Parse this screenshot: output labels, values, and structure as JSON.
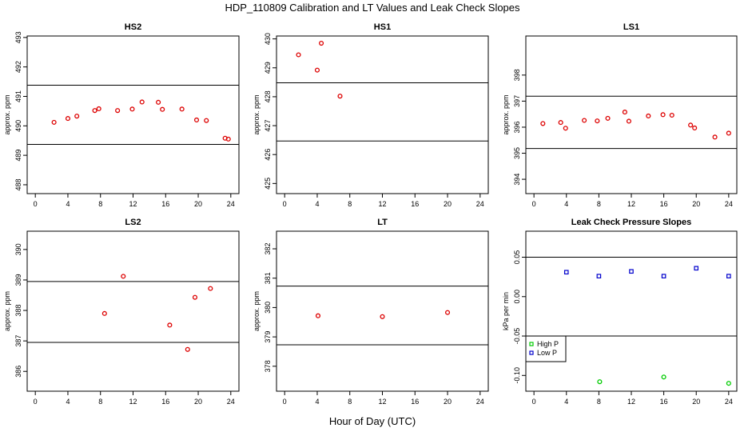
{
  "figure": {
    "title": "HDP_110809  Calibration and LT Values and Leak Check Slopes",
    "xlabel": "Hour of Day (UTC)"
  },
  "chart_data": [
    {
      "type": "scatter",
      "title": "HS2",
      "ylabel": "approx. ppm",
      "xlim": [
        -1,
        25
      ],
      "ylim": [
        487.7,
        493.05
      ],
      "xticks": [
        0,
        4,
        8,
        12,
        16,
        20,
        24
      ],
      "yticks": [
        488,
        489,
        490,
        491,
        492,
        493
      ],
      "hlines": [
        489.37,
        491.38
      ],
      "grid": false,
      "series": [
        {
          "color": "#dd0000",
          "marker": "circle",
          "x": [
            2.3,
            4.0,
            5.1,
            7.3,
            7.8,
            10.1,
            11.9,
            13.1,
            15.1,
            15.6,
            18.0,
            19.8,
            21.0,
            23.3,
            23.7
          ],
          "y": [
            490.12,
            490.25,
            490.33,
            490.52,
            490.58,
            490.52,
            490.57,
            490.81,
            490.8,
            490.56,
            490.57,
            490.2,
            490.18,
            489.58,
            489.55
          ]
        }
      ]
    },
    {
      "type": "scatter",
      "title": "HS1",
      "ylabel": "approx. ppm",
      "xlim": [
        -1,
        25
      ],
      "ylim": [
        424.65,
        430.1
      ],
      "xticks": [
        0,
        4,
        8,
        12,
        16,
        20,
        24
      ],
      "yticks": [
        425,
        426,
        427,
        428,
        429,
        430
      ],
      "hlines": [
        426.47,
        428.48
      ],
      "grid": false,
      "series": [
        {
          "color": "#dd0000",
          "marker": "circle",
          "x": [
            1.7,
            4.0,
            4.5,
            6.8
          ],
          "y": [
            429.45,
            428.92,
            429.85,
            428.02
          ]
        }
      ]
    },
    {
      "type": "scatter",
      "title": "LS1",
      "ylabel": "approx. ppm",
      "xlim": [
        -1,
        25
      ],
      "ylim": [
        393.45,
        399.5
      ],
      "xticks": [
        0,
        4,
        8,
        12,
        16,
        20,
        24
      ],
      "yticks": [
        394,
        395,
        396,
        397,
        398
      ],
      "hlines": [
        395.18,
        397.19
      ],
      "grid": false,
      "series": [
        {
          "color": "#dd0000",
          "marker": "circle",
          "x": [
            1.1,
            3.3,
            3.9,
            6.2,
            7.8,
            9.1,
            11.2,
            11.7,
            14.1,
            15.9,
            17.0,
            19.3,
            19.8,
            22.3,
            24.0
          ],
          "y": [
            396.14,
            396.18,
            395.96,
            396.26,
            396.24,
            396.34,
            396.58,
            396.23,
            396.43,
            396.48,
            396.46,
            396.08,
            395.97,
            395.62,
            395.77
          ]
        }
      ]
    },
    {
      "type": "scatter",
      "title": "LS2",
      "ylabel": "approx. ppm",
      "xlim": [
        -1,
        25
      ],
      "ylim": [
        385.35,
        390.6
      ],
      "xticks": [
        0,
        4,
        8,
        12,
        16,
        20,
        24
      ],
      "yticks": [
        386,
        387,
        388,
        389,
        390
      ],
      "hlines": [
        386.95,
        388.95
      ],
      "grid": false,
      "series": [
        {
          "color": "#dd0000",
          "marker": "circle",
          "x": [
            8.5,
            10.8,
            16.5,
            18.7,
            19.6,
            21.5
          ],
          "y": [
            387.9,
            389.12,
            387.52,
            386.72,
            388.43,
            388.72
          ]
        }
      ]
    },
    {
      "type": "scatter",
      "title": "LT",
      "ylabel": "approx. ppm",
      "xlim": [
        -1,
        25
      ],
      "ylim": [
        377.15,
        382.6
      ],
      "xticks": [
        0,
        4,
        8,
        12,
        16,
        20,
        24
      ],
      "yticks": [
        378,
        379,
        380,
        381,
        382
      ],
      "hlines": [
        378.73,
        380.73
      ],
      "grid": false,
      "series": [
        {
          "color": "#dd0000",
          "marker": "circle",
          "x": [
            4.1,
            12.0,
            20.0
          ],
          "y": [
            379.72,
            379.69,
            379.83
          ]
        }
      ]
    },
    {
      "type": "scatter",
      "title": "Leak Check Pressure Slopes",
      "ylabel": "kPa per min",
      "xlim": [
        -1,
        25
      ],
      "ylim": [
        -0.12,
        0.083
      ],
      "xticks": [
        0,
        4,
        8,
        12,
        16,
        20,
        24
      ],
      "yticks": [
        -0.1,
        -0.05,
        0.0,
        0.05
      ],
      "ytick_labels": [
        "-0.10",
        "-0.05",
        "0.00",
        "0.05"
      ],
      "hlines": [
        0.05,
        -0.05
      ],
      "grid": false,
      "legend_position": "lower-left",
      "series": [
        {
          "name": "High P",
          "color": "#00cc00",
          "marker": "circle",
          "x": [
            8.1,
            16.0,
            24.0
          ],
          "y": [
            -0.108,
            -0.102,
            -0.11
          ]
        },
        {
          "name": "Low P",
          "color": "#0000cc",
          "marker": "square",
          "x": [
            4.0,
            8.0,
            12.0,
            16.0,
            20.0,
            24.0
          ],
          "y": [
            0.031,
            0.026,
            0.032,
            0.026,
            0.036,
            0.026
          ]
        }
      ]
    }
  ]
}
